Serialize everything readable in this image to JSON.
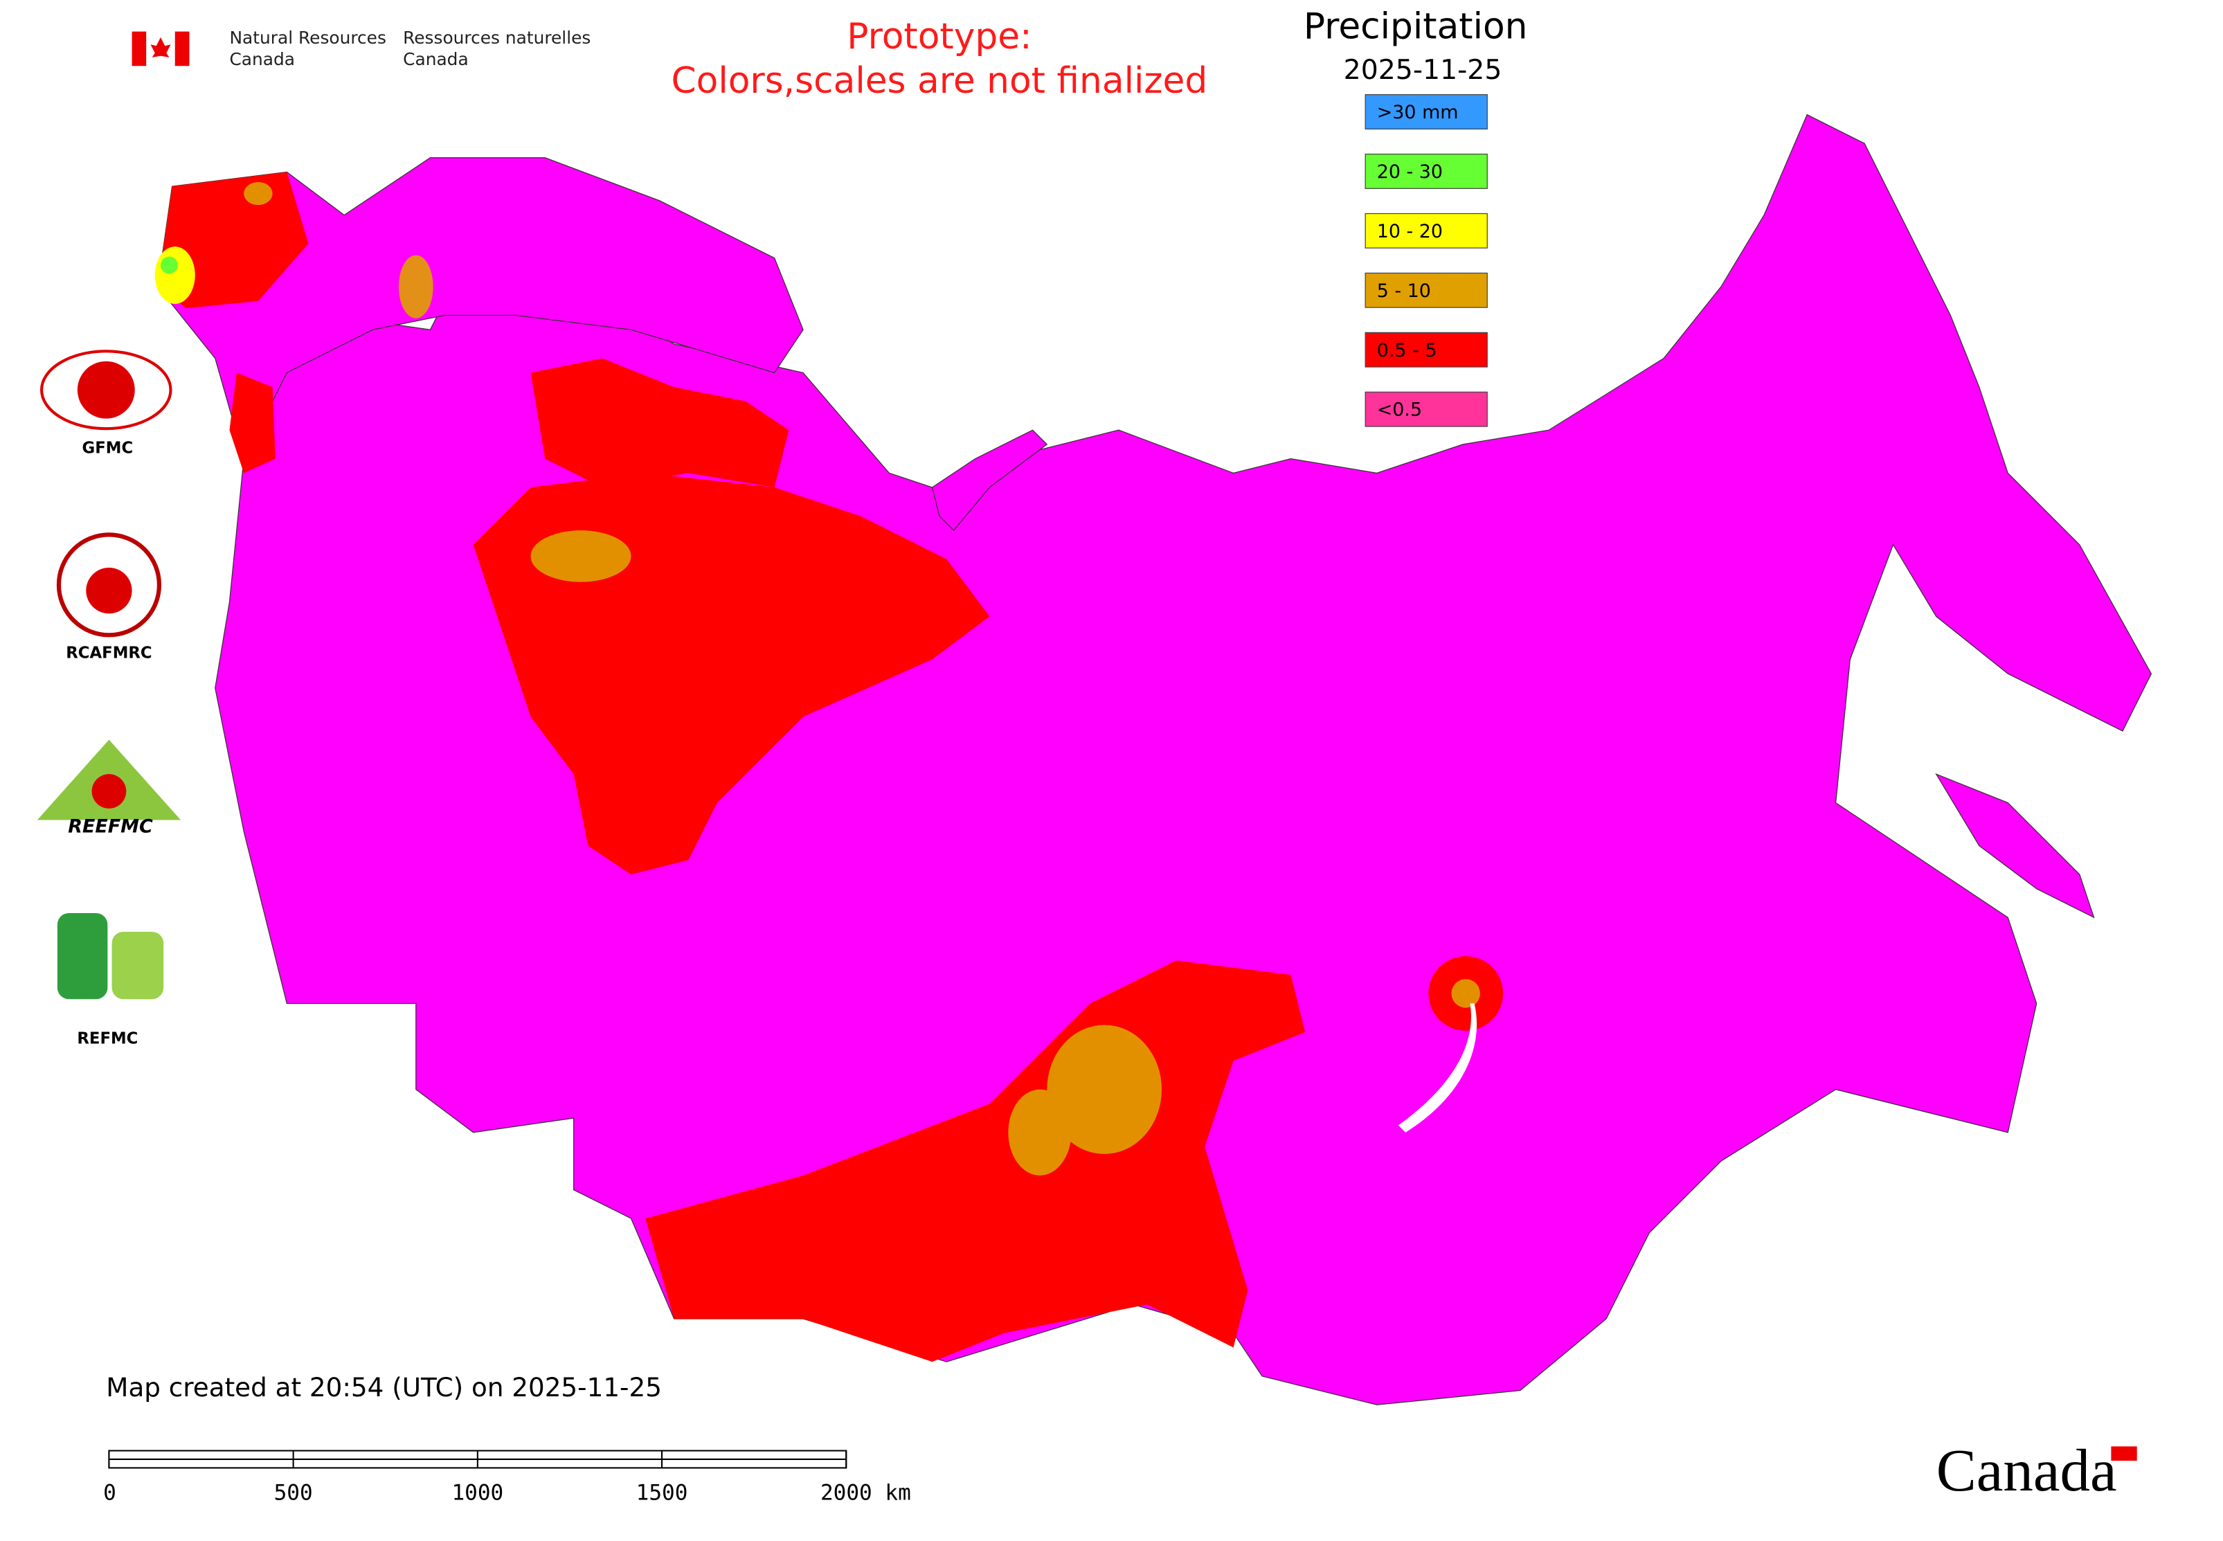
{
  "header": {
    "agency_en": [
      "Natural Resources",
      "Canada"
    ],
    "agency_fr": [
      "Ressources naturelles",
      "Canada"
    ],
    "notice": [
      "Prototype:",
      "Colors,scales are not finalized"
    ]
  },
  "legend": {
    "title": "Precipitation",
    "date": "2025-11-25",
    "items": [
      {
        "label": ">30 mm",
        "color": "#3399ff"
      },
      {
        "label": "20 - 30",
        "color": "#66ff33"
      },
      {
        "label": "10 - 20",
        "color": "#ffff00"
      },
      {
        "label": "5 - 10",
        "color": "#e0a000"
      },
      {
        "label": "0.5 - 5",
        "color": "#ff0000"
      },
      {
        "label": "<0.5",
        "color": "#ff3399"
      }
    ]
  },
  "logos": [
    {
      "label": "GFMC"
    },
    {
      "label": "RCAFMRC"
    },
    {
      "label": "REEFMC"
    },
    {
      "label": "REFMC"
    }
  ],
  "footer": {
    "created": "Map created at 20:54 (UTC) on 2025-11-25",
    "scale_bar": {
      "ticks": [
        0,
        500,
        1000,
        1500,
        {
          "value": 2000,
          "label": "2000 km"
        }
      ]
    },
    "wordmark": "Canada"
  }
}
